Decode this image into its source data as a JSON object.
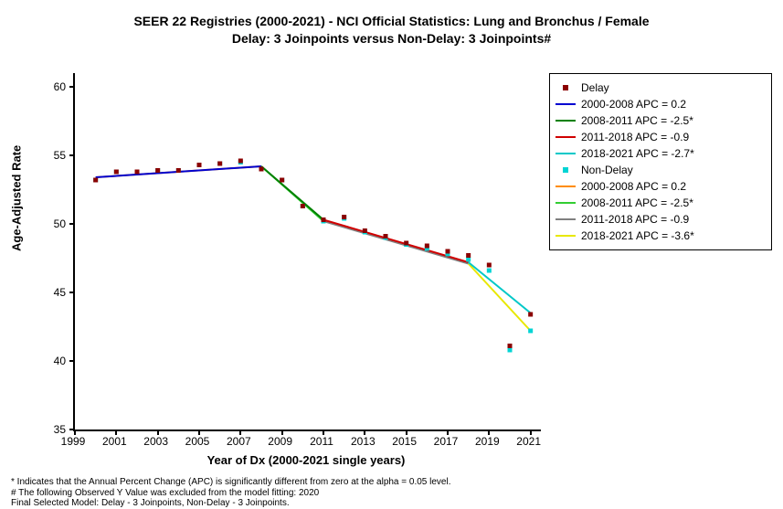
{
  "title_line1": "SEER 22 Registries (2000-2021) - NCI Official Statistics: Lung and Bronchus / Female",
  "title_line2": "Delay: 3 Joinpoints  versus  Non-Delay: 3 Joinpoints#",
  "x_axis_label": "Year of Dx (2000-2021 single years)",
  "y_axis_label": "Age-Adjusted Rate",
  "chart": {
    "type": "line-scatter",
    "xlim": [
      1999,
      2021.5
    ],
    "ylim": [
      35,
      61
    ],
    "xticks": [
      1999,
      2001,
      2003,
      2005,
      2007,
      2009,
      2011,
      2013,
      2015,
      2017,
      2019,
      2021
    ],
    "yticks": [
      35,
      40,
      45,
      50,
      55,
      60
    ],
    "background_color": "#ffffff",
    "axis_color": "#000000",
    "tick_font_size": 12,
    "label_font_size": 13,
    "title_font_size": 14,
    "series": {
      "delay_points": {
        "label": "Delay",
        "color": "#8b0000",
        "marker": "square",
        "marker_size": 5,
        "x": [
          2000,
          2001,
          2002,
          2003,
          2004,
          2005,
          2006,
          2007,
          2008,
          2009,
          2010,
          2011,
          2012,
          2013,
          2014,
          2015,
          2016,
          2017,
          2018,
          2019,
          2020,
          2021
        ],
        "y": [
          53.2,
          53.8,
          53.8,
          53.9,
          53.9,
          54.3,
          54.4,
          54.6,
          54.0,
          53.2,
          51.3,
          50.3,
          50.5,
          49.5,
          49.1,
          48.6,
          48.4,
          48.0,
          47.7,
          47.0,
          41.1,
          43.4
        ]
      },
      "nondelay_points": {
        "label": "Non-Delay",
        "color": "#00d4d4",
        "marker": "square",
        "marker_size": 5,
        "x": [
          2000,
          2001,
          2002,
          2003,
          2004,
          2005,
          2006,
          2007,
          2008,
          2009,
          2010,
          2011,
          2012,
          2013,
          2014,
          2015,
          2016,
          2017,
          2018,
          2019,
          2020,
          2021
        ],
        "y": [
          53.2,
          53.8,
          53.8,
          53.9,
          53.9,
          54.3,
          54.4,
          54.5,
          54.0,
          53.2,
          51.3,
          50.2,
          50.4,
          49.4,
          49.0,
          48.5,
          48.2,
          47.8,
          47.4,
          46.6,
          40.8,
          42.2
        ]
      },
      "delay_segments": [
        {
          "label": "2000-2008 APC =  0.2",
          "color": "#0000d0",
          "width": 2,
          "pts": [
            [
              2000,
              53.4
            ],
            [
              2008,
              54.2
            ]
          ]
        },
        {
          "label": "2008-2011 APC = -2.5*",
          "color": "#008000",
          "width": 2,
          "pts": [
            [
              2008,
              54.2
            ],
            [
              2011,
              50.3
            ]
          ]
        },
        {
          "label": "2011-2018 APC = -0.9",
          "color": "#d00000",
          "width": 2,
          "pts": [
            [
              2011,
              50.3
            ],
            [
              2018,
              47.2
            ]
          ]
        },
        {
          "label": "2018-2021 APC = -2.7*",
          "color": "#00c8c8",
          "width": 2,
          "pts": [
            [
              2018,
              47.2
            ],
            [
              2021,
              43.5
            ]
          ]
        }
      ],
      "nondelay_segments": [
        {
          "label": "2000-2008 APC =  0.2",
          "color": "#ff8c00",
          "width": 2,
          "pts": [
            [
              2000,
              53.4
            ],
            [
              2008,
              54.2
            ]
          ]
        },
        {
          "label": "2008-2011 APC = -2.5*",
          "color": "#32cd32",
          "width": 2,
          "pts": [
            [
              2008,
              54.2
            ],
            [
              2011,
              50.2
            ]
          ]
        },
        {
          "label": "2011-2018 APC = -0.9",
          "color": "#808080",
          "width": 2,
          "pts": [
            [
              2011,
              50.2
            ],
            [
              2018,
              47.1
            ]
          ]
        },
        {
          "label": "2018-2021 APC = -3.6*",
          "color": "#e8e800",
          "width": 2,
          "pts": [
            [
              2018,
              47.1
            ],
            [
              2021,
              42.2
            ]
          ]
        }
      ]
    }
  },
  "legend": [
    {
      "kind": "marker",
      "color": "#8b0000",
      "label": "Delay"
    },
    {
      "kind": "line",
      "color": "#0000d0",
      "label": "2000-2008 APC =  0.2"
    },
    {
      "kind": "line",
      "color": "#008000",
      "label": "2008-2011 APC = -2.5*"
    },
    {
      "kind": "line",
      "color": "#d00000",
      "label": "2011-2018 APC = -0.9"
    },
    {
      "kind": "line",
      "color": "#00c8c8",
      "label": "2018-2021 APC = -2.7*"
    },
    {
      "kind": "marker",
      "color": "#00d4d4",
      "label": "Non-Delay"
    },
    {
      "kind": "line",
      "color": "#ff8c00",
      "label": "2000-2008 APC =  0.2"
    },
    {
      "kind": "line",
      "color": "#32cd32",
      "label": "2008-2011 APC = -2.5*"
    },
    {
      "kind": "line",
      "color": "#808080",
      "label": "2011-2018 APC = -0.9"
    },
    {
      "kind": "line",
      "color": "#e8e800",
      "label": "2018-2021 APC = -3.6*"
    }
  ],
  "footnotes": [
    "* Indicates that the Annual Percent Change (APC) is significantly different from zero at the alpha = 0.05 level.",
    " # The following Observed Y Value was excluded from the model fitting:  2020",
    "Final Selected Model: Delay - 3 Joinpoints, Non-Delay - 3 Joinpoints."
  ]
}
